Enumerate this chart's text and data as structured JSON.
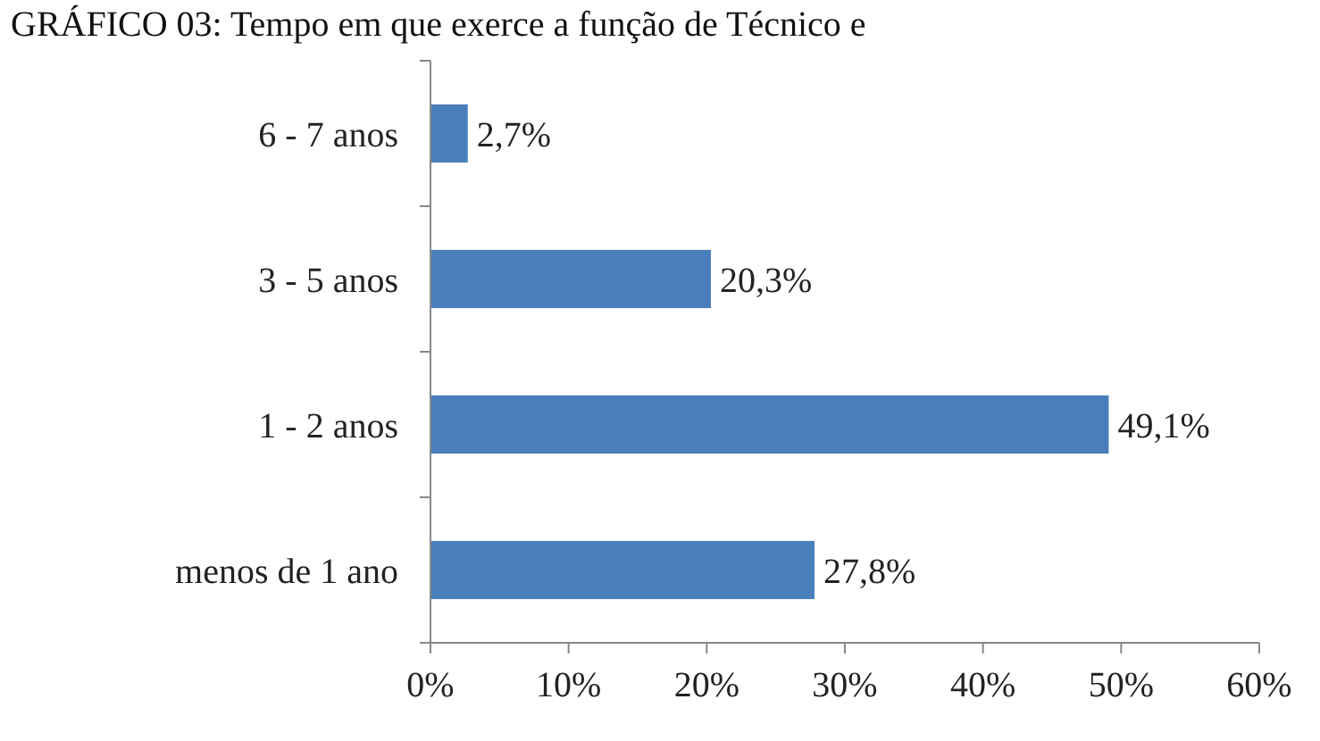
{
  "chart_data": {
    "type": "bar",
    "orientation": "horizontal",
    "title": "GRÁFICO 03: Tempo em que exerce a função de Técnico e",
    "categories": [
      "6 - 7 anos",
      "3 - 5 anos",
      "1 - 2 anos",
      "menos de 1 ano"
    ],
    "values": [
      2.7,
      20.3,
      49.1,
      27.8
    ],
    "color": "#4a7ebb",
    "value_labels": [
      "2,7%",
      "20,3%",
      "49,1%",
      "27,8%"
    ],
    "xlim": [
      0,
      60
    ],
    "xticks": [
      {
        "value": 0,
        "label": "0%"
      },
      {
        "value": 10,
        "label": "10%"
      },
      {
        "value": 20,
        "label": "20%"
      },
      {
        "value": 30,
        "label": "30%"
      },
      {
        "value": 40,
        "label": "40%"
      },
      {
        "value": 50,
        "label": "50%"
      },
      {
        "value": 60,
        "label": "60%"
      }
    ],
    "grid": false
  }
}
